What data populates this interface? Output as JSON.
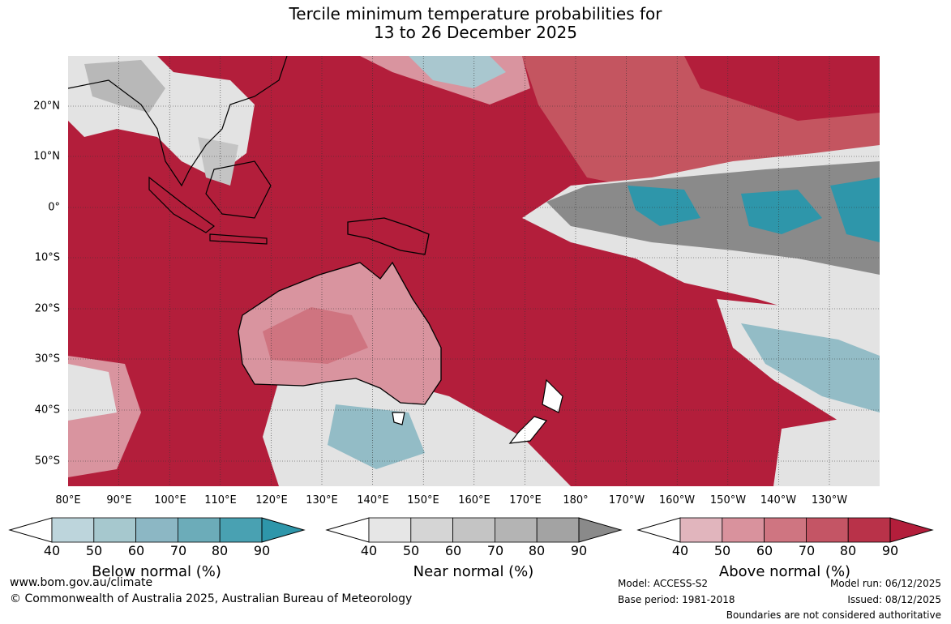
{
  "title": {
    "line1": "Tercile minimum temperature probabilities for",
    "line2": "13 to 26 December 2025"
  },
  "map": {
    "latitudes": [
      "20°N",
      "10°N",
      "0°",
      "10°S",
      "20°S",
      "30°S",
      "40°S",
      "50°S"
    ],
    "longitudes": [
      "80°E",
      "90°E",
      "100°E",
      "110°E",
      "120°E",
      "130°E",
      "140°E",
      "150°E",
      "160°E",
      "170°E",
      "180°",
      "170°W",
      "160°W",
      "150°W",
      "140°W",
      "130°W"
    ],
    "colors": {
      "above_80_90": "#b31e3b",
      "above_70_80": "#c45560",
      "above_60_70": "#cf7480",
      "above_50_60": "#d9949f",
      "above_40_50": "#e3b7bf",
      "near_high": "#8a8a8a",
      "near_mid": "#b8b8b8",
      "near_low": "#e3e3e3",
      "below_mid": "#93bcc6",
      "below_high": "#2e96aa"
    }
  },
  "legends": [
    {
      "title": "Below normal (%)",
      "ticks": [
        "40",
        "50",
        "60",
        "70",
        "80",
        "90"
      ],
      "colors": [
        "#bdd5dc",
        "#a6c8ce",
        "#8cb7c4",
        "#6cacb9",
        "#49a1b2",
        "#2e96aa"
      ]
    },
    {
      "title": "Near normal (%)",
      "ticks": [
        "40",
        "50",
        "60",
        "70",
        "80",
        "90"
      ],
      "colors": [
        "#e6e6e6",
        "#d5d5d5",
        "#c4c4c4",
        "#b4b4b4",
        "#a3a3a3",
        "#8a8a8a"
      ]
    },
    {
      "title": "Above normal (%)",
      "ticks": [
        "40",
        "50",
        "60",
        "70",
        "80",
        "90"
      ],
      "colors": [
        "#e1b5bd",
        "#d9929d",
        "#cf7581",
        "#c45565",
        "#b93249",
        "#b31e3b"
      ]
    }
  ],
  "footer": {
    "website": "www.bom.gov.au/climate",
    "copyright": "© Commonwealth of Australia 2025, Australian Bureau of Meteorology",
    "model": "Model: ACCESS-S2",
    "base_period": "Base period: 1981-2018",
    "model_run": "Model run: 06/12/2025",
    "issued": "Issued: 08/12/2025",
    "disclaimer": "Boundaries are not considered authoritative"
  }
}
